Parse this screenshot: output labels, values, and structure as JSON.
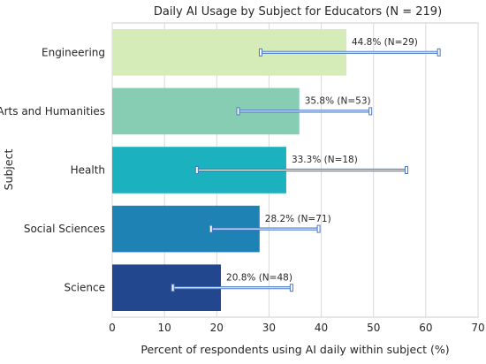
{
  "chart_data": {
    "type": "bar",
    "orientation": "horizontal",
    "title": "Daily AI Usage by Subject for Educators (N = 219)",
    "xlabel": "Percent of respondents using AI daily within subject (%)",
    "ylabel": "Subject",
    "xlim": [
      0,
      70
    ],
    "xticks": [
      0,
      10,
      20,
      30,
      40,
      50,
      60,
      70
    ],
    "grid": "vertical",
    "categories": [
      "Engineering",
      "Arts and Humanities",
      "Health",
      "Social Sciences",
      "Science"
    ],
    "values": [
      44.8,
      35.8,
      33.3,
      28.2,
      20.8
    ],
    "error_low": [
      28.4,
      24.1,
      16.2,
      18.9,
      11.6
    ],
    "error_high": [
      62.5,
      49.4,
      56.3,
      39.5,
      34.3
    ],
    "data_labels": [
      "44.8% (N=29)",
      "35.8% (N=53)",
      "33.3% (N=18)",
      "28.2% (N=71)",
      "20.8% (N=48)"
    ],
    "colors": [
      "#d6ecb8",
      "#86cdb4",
      "#1cb1be",
      "#1f82b5",
      "#23478f"
    ],
    "error_color": "#4a78c4"
  }
}
